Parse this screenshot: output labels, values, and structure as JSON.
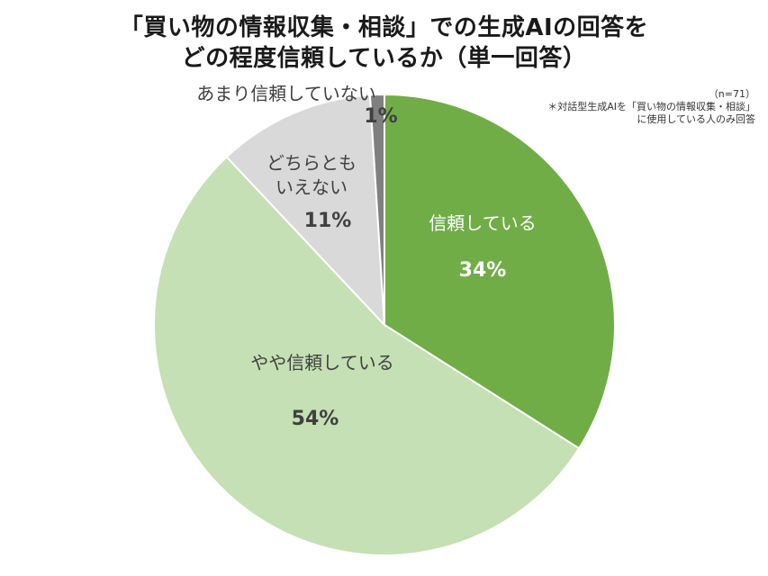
{
  "titles": {
    "line1": "「買い物の情報収集・相談」での生成AIの回答を",
    "line2": "どの程度信頼しているか（単一回答）"
  },
  "notes": {
    "n": "（n=71）",
    "line1": "＊対話型生成AIを「買い物の情報収集・相談」",
    "line2": "に使用している人のみ回答"
  },
  "chart_data": {
    "type": "pie",
    "title": "「買い物の情報収集・相談」での生成AIの回答をどの程度信頼しているか（単一回答）",
    "slices": [
      {
        "label": "信頼している",
        "value": 34,
        "value_label": "34%",
        "color": "#70ad47",
        "text_color": "#ffffff"
      },
      {
        "label": "やや信頼している",
        "value": 54,
        "value_label": "54%",
        "color": "#c5e0b4",
        "text_color": "#404040"
      },
      {
        "label": "どちらとも\nいえない",
        "value": 11,
        "value_label": "11%",
        "color": "#d9d9d9",
        "text_color": "#404040"
      },
      {
        "label": "あまり信頼していない",
        "value": 1,
        "value_label": "1%",
        "color": "#808080",
        "text_color": "#404040"
      }
    ]
  }
}
